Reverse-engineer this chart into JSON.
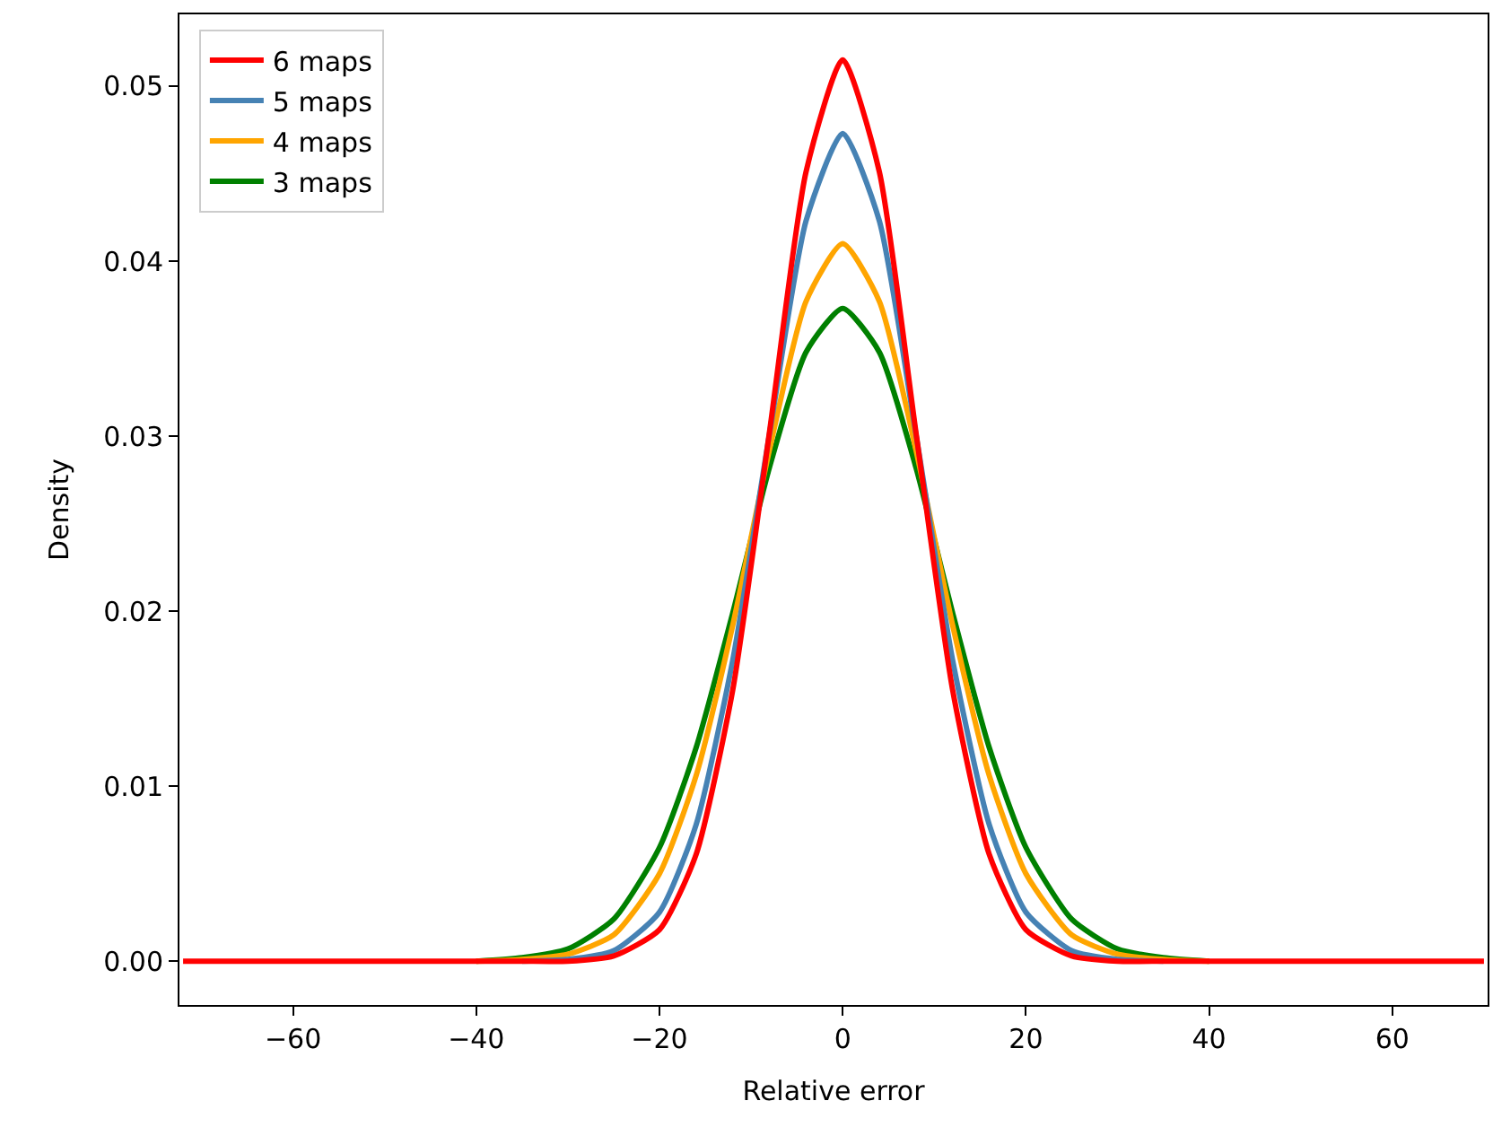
{
  "chart_data": {
    "type": "line",
    "xlabel": "Relative error",
    "ylabel": "Density",
    "x": [
      -72,
      -60,
      -50,
      -40,
      -35,
      -30,
      -25,
      -20,
      -16,
      -12,
      -8,
      -4,
      0,
      4,
      8,
      12,
      16,
      20,
      25,
      30,
      35,
      40,
      50,
      60,
      70
    ],
    "series": [
      {
        "name": "6 maps",
        "color": "#ff0000",
        "values": [
          0,
          0,
          0,
          0,
          0,
          0,
          0.0003,
          0.0018,
          0.0061,
          0.0155,
          0.0302,
          0.0451,
          0.0515,
          0.0451,
          0.0302,
          0.0155,
          0.0061,
          0.0018,
          0.0003,
          0,
          0,
          0,
          0,
          0,
          0
        ]
      },
      {
        "name": "5 maps",
        "color": "#4682b4",
        "values": [
          null,
          null,
          null,
          null,
          0,
          0.0001,
          0.0006,
          0.0028,
          0.0078,
          0.0172,
          0.0301,
          0.0423,
          0.0473,
          0.0423,
          0.0301,
          0.0172,
          0.0078,
          0.0028,
          0.0006,
          0.0001,
          0,
          null,
          null,
          null,
          null
        ]
      },
      {
        "name": "4 maps",
        "color": "#ffa500",
        "values": [
          null,
          null,
          null,
          0,
          0.0001,
          0.0004,
          0.0015,
          0.005,
          0.0106,
          0.0192,
          0.0292,
          0.0377,
          0.041,
          0.0377,
          0.0292,
          0.0192,
          0.0106,
          0.005,
          0.0015,
          0.0004,
          0.0001,
          0,
          null,
          null,
          null
        ]
      },
      {
        "name": "3 maps",
        "color": "#008000",
        "values": [
          null,
          null,
          null,
          0,
          0.0002,
          0.0007,
          0.0024,
          0.0065,
          0.0122,
          0.0199,
          0.0282,
          0.0348,
          0.0373,
          0.0348,
          0.0282,
          0.0199,
          0.0122,
          0.0065,
          0.0024,
          0.0007,
          0.0002,
          0,
          null,
          null,
          null
        ]
      }
    ],
    "xlim": [
      -72.4,
      70.4
    ],
    "xticks": [
      {
        "value": -60,
        "label": "−60"
      },
      {
        "value": -40,
        "label": "−40"
      },
      {
        "value": -20,
        "label": "−20"
      },
      0,
      20,
      40,
      60
    ],
    "ylim": [
      -0.0025,
      0.0541
    ],
    "yticks": [
      {
        "value": 0,
        "label": "0.00"
      },
      0.01,
      0.02,
      0.03,
      0.04,
      0.05
    ],
    "legend": "top left",
    "marker": "none",
    "line_style": "solid"
  }
}
